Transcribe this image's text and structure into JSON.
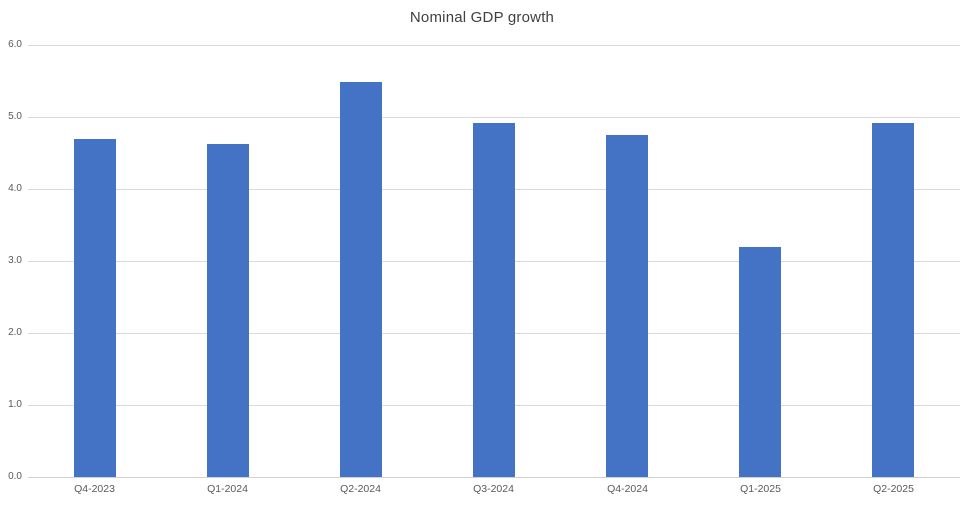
{
  "chart_data": {
    "type": "bar",
    "title": "Nominal GDP growth",
    "categories": [
      "Q4-2023",
      "Q1-2024",
      "Q2-2024",
      "Q3-2024",
      "Q4-2024",
      "Q1-2025",
      "Q2-2025"
    ],
    "values": [
      4.7,
      4.62,
      5.48,
      4.92,
      4.75,
      3.2,
      4.92
    ],
    "xlabel": "",
    "ylabel": "",
    "ylim": [
      0,
      6
    ],
    "ytick_step": 1,
    "ytick_labels": [
      "0.0",
      "1.0",
      "2.0",
      "3.0",
      "4.0",
      "5.0",
      "6.0"
    ],
    "grid": true,
    "legend": false,
    "colors": {
      "bar_fill": "#4472C4",
      "gridline": "#D9D9D9",
      "tick_label": "#595959",
      "title": "#404040",
      "background": "#FFFFFF"
    }
  }
}
